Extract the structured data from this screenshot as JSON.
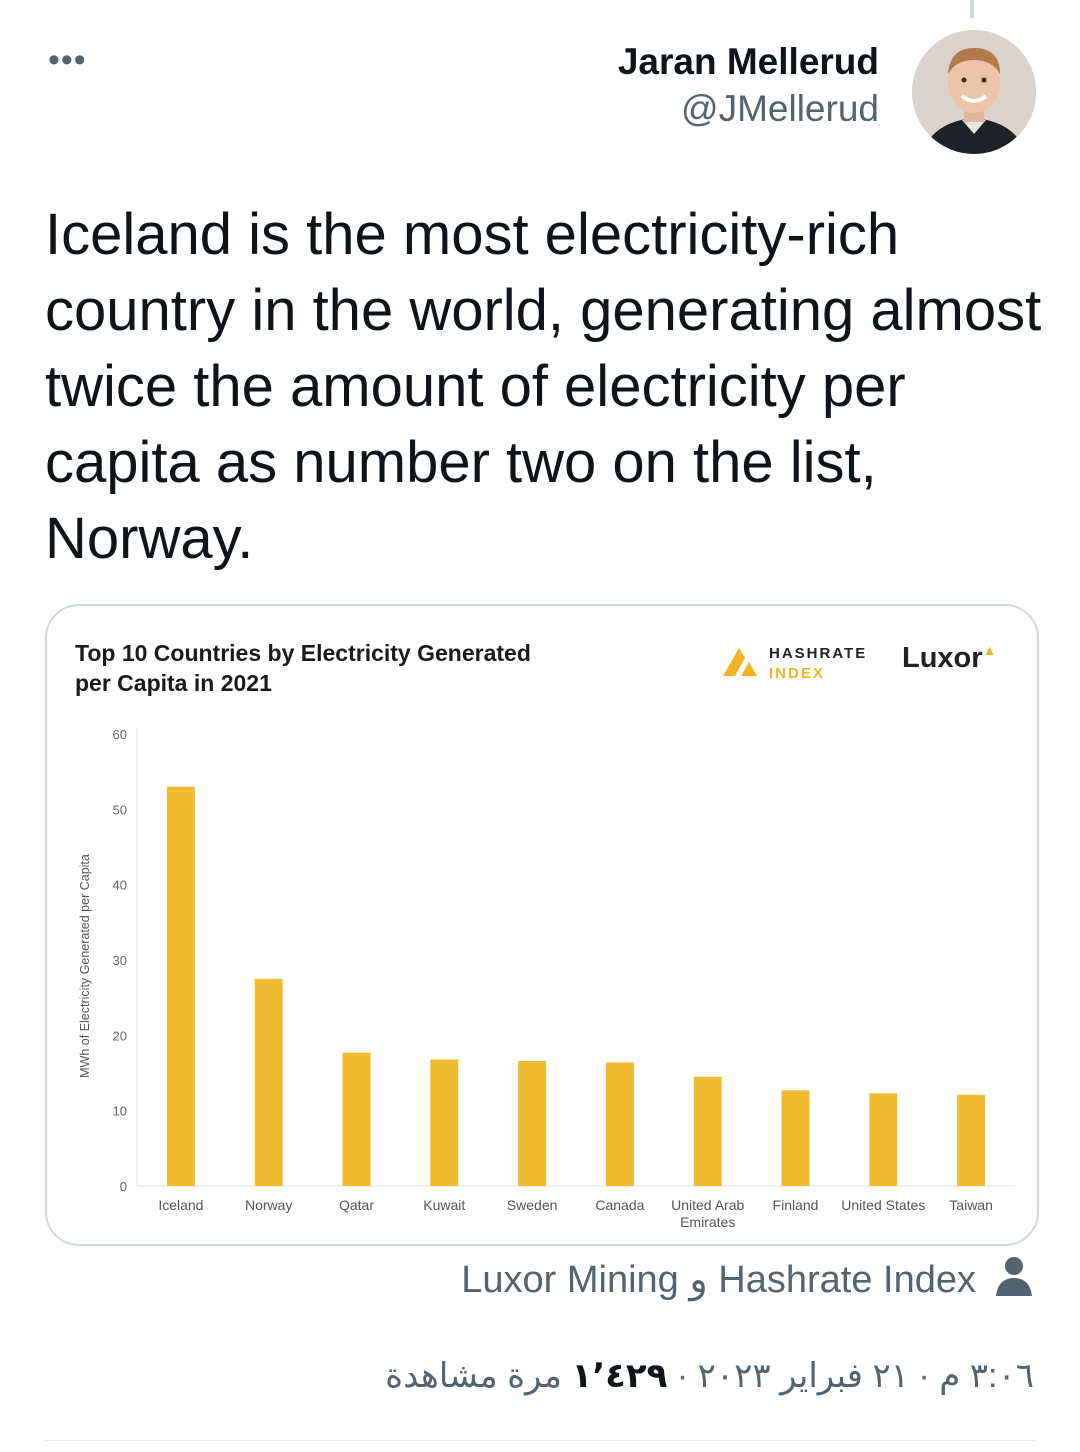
{
  "author": {
    "name": "Jaran Mellerud",
    "handle": "@JMellerud"
  },
  "icons": {
    "more": "more-icon",
    "person": "person-icon"
  },
  "tweet": {
    "text": "Iceland is the most electricity-rich country in the world, generating almost twice the amount of electricity per capita as number two on the list, Norway."
  },
  "card": {
    "title_line1": "Top 10 Countries by Electricity Generated",
    "title_line2": "per Capita in 2021",
    "logo_hashrate_1": "HASHRATE",
    "logo_hashrate_2": "INDEX",
    "logo_luxor": "Luxor"
  },
  "chart_data": {
    "type": "bar",
    "title": "Top 10 Countries by Electricity Generated per Capita in 2021",
    "xlabel": "",
    "ylabel": "MWh of Electricity Generated per Capita",
    "ylim": [
      0,
      60
    ],
    "yticks": [
      0,
      10,
      20,
      30,
      40,
      50,
      60
    ],
    "grid": false,
    "bar_color": "#f0bb30",
    "categories": [
      "Iceland",
      "Norway",
      "Qatar",
      "Kuwait",
      "Sweden",
      "Canada",
      "United Arab Emirates",
      "Finland",
      "United States",
      "Taiwan"
    ],
    "values": [
      53,
      27.5,
      17.7,
      16.8,
      16.6,
      16.4,
      14.5,
      12.7,
      12.3,
      12.1
    ]
  },
  "attribution": {
    "text": "Luxor Mining و Hashrate Index"
  },
  "meta": {
    "time": "٣:٠٦ م",
    "date": "٢١ فبراير ٢٠٢٣",
    "views_count": "١٬٤٢٩",
    "views_label": "مرة مشاهدة",
    "sep": "·"
  }
}
